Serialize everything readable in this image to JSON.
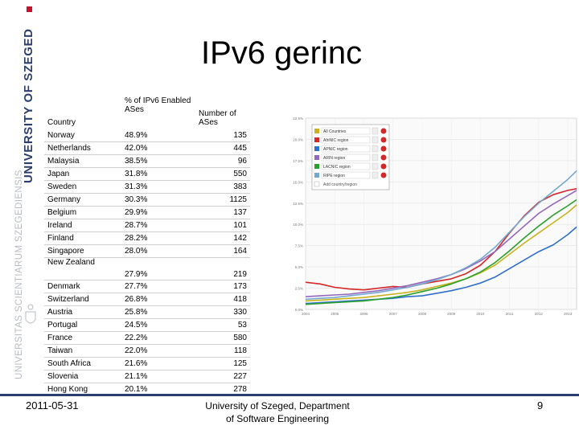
{
  "slide": {
    "title": "IPv6 gerinc",
    "date": "2011-05-31",
    "affiliation_line1": "University of Szeged, Department",
    "affiliation_line2": "of Software Engineering",
    "page_number": "9"
  },
  "logo": {
    "main_text": "UNIVERSITY OF SZEGED",
    "latin_text": "UNIVERSITAS SCIENTIARUM SZEGEDIENSIS",
    "colors": {
      "navy": "#2c3e6b",
      "gray": "#b9bcc4",
      "red": "#c8102e"
    }
  },
  "table": {
    "headers": {
      "country": "Country",
      "percent": "% of IPv6 Enabled ASes",
      "ases": "Number of ASes"
    },
    "rows": [
      {
        "country": "Norway",
        "percent": "48.9%",
        "ases": "135"
      },
      {
        "country": "Netherlands",
        "percent": "42.0%",
        "ases": "445"
      },
      {
        "country": "Malaysia",
        "percent": "38.5%",
        "ases": "96"
      },
      {
        "country": "Japan",
        "percent": "31.8%",
        "ases": "550"
      },
      {
        "country": "Sweden",
        "percent": "31.3%",
        "ases": "383"
      },
      {
        "country": "Germany",
        "percent": "30.3%",
        "ases": "1125"
      },
      {
        "country": "Belgium",
        "percent": "29.9%",
        "ases": "137"
      },
      {
        "country": "Ireland",
        "percent": "28.7%",
        "ases": "101"
      },
      {
        "country": "Finland",
        "percent": "28.2%",
        "ases": "142"
      },
      {
        "country": "Singapore",
        "percent": "28.0%",
        "ases": "164"
      },
      {
        "country": "New Zealand",
        "percent": "27.9%",
        "ases": "219"
      },
      {
        "country": "Denmark",
        "percent": "27.7%",
        "ases": "173"
      },
      {
        "country": "Switzerland",
        "percent": "26.8%",
        "ases": "418"
      },
      {
        "country": "Austria",
        "percent": "25.8%",
        "ases": "330"
      },
      {
        "country": "Portugal",
        "percent": "24.5%",
        "ases": "53"
      },
      {
        "country": "France",
        "percent": "22.2%",
        "ases": "580"
      },
      {
        "country": "Taiwan",
        "percent": "22.0%",
        "ases": "118"
      },
      {
        "country": "South Africa",
        "percent": "21.6%",
        "ases": "125"
      },
      {
        "country": "Slovenia",
        "percent": "21.1%",
        "ases": "227"
      },
      {
        "country": "Hong Kong",
        "percent": "20.1%",
        "ases": "278"
      }
    ]
  },
  "chart_data": {
    "type": "line",
    "y_tick_labels": [
      "0.0%",
      "2.5%",
      "5.0%",
      "7.5%",
      "10.0%",
      "12.5%",
      "15.0%",
      "17.5%",
      "20.0%",
      "22.5%"
    ],
    "x_tick_labels": [
      "2004",
      "2005",
      "2006",
      "2007",
      "2008",
      "2009",
      "2010",
      "2011",
      "2012",
      "2013"
    ],
    "x": [
      2004,
      2004.5,
      2005,
      2005.5,
      2006,
      2006.5,
      2007,
      2007.5,
      2008,
      2008.5,
      2009,
      2009.5,
      2010,
      2010.5,
      2011,
      2011.5,
      2012,
      2012.5,
      2013,
      2013.3
    ],
    "ylim": [
      0,
      22.5
    ],
    "legend_position": "top-left",
    "series": [
      {
        "name": "All Countries",
        "color": "#c9b21e",
        "values": [
          1.0,
          1.1,
          1.2,
          1.3,
          1.4,
          1.6,
          1.8,
          2.0,
          2.3,
          2.7,
          3.1,
          3.6,
          4.3,
          5.2,
          6.5,
          7.8,
          9.0,
          10.2,
          11.4,
          12.3
        ]
      },
      {
        "name": "AfriNIC region",
        "color": "#d62728",
        "values": [
          3.2,
          3.0,
          2.6,
          2.4,
          2.3,
          2.5,
          2.7,
          2.6,
          3.0,
          3.3,
          3.6,
          4.2,
          5.2,
          6.8,
          9.0,
          11.0,
          12.6,
          13.5,
          14.0,
          14.2
        ]
      },
      {
        "name": "APNIC region",
        "color": "#2f6fcf",
        "values": [
          0.7,
          0.8,
          0.9,
          1.0,
          1.1,
          1.2,
          1.3,
          1.5,
          1.6,
          1.9,
          2.2,
          2.6,
          3.1,
          3.8,
          4.8,
          5.8,
          6.8,
          7.6,
          8.8,
          9.7
        ]
      },
      {
        "name": "ARIN region",
        "color": "#9467bd",
        "values": [
          1.5,
          1.6,
          1.7,
          1.8,
          2.0,
          2.2,
          2.5,
          2.8,
          3.2,
          3.6,
          4.1,
          4.8,
          5.7,
          6.8,
          8.3,
          9.8,
          11.3,
          12.4,
          13.4,
          14.0
        ]
      },
      {
        "name": "LACNIC region",
        "color": "#2ca02c",
        "values": [
          0.6,
          0.7,
          0.8,
          0.9,
          1.0,
          1.2,
          1.4,
          1.7,
          2.1,
          2.5,
          3.0,
          3.6,
          4.4,
          5.5,
          6.9,
          8.4,
          9.8,
          11.1,
          12.2,
          12.9
        ]
      },
      {
        "name": "RIPE region",
        "color": "#74a9cf",
        "values": [
          1.2,
          1.3,
          1.4,
          1.6,
          1.8,
          2.0,
          2.3,
          2.6,
          3.0,
          3.5,
          4.1,
          4.9,
          5.9,
          7.3,
          9.1,
          10.9,
          12.5,
          13.9,
          15.3,
          16.3
        ]
      }
    ],
    "legend_extra": "Add country/region"
  }
}
